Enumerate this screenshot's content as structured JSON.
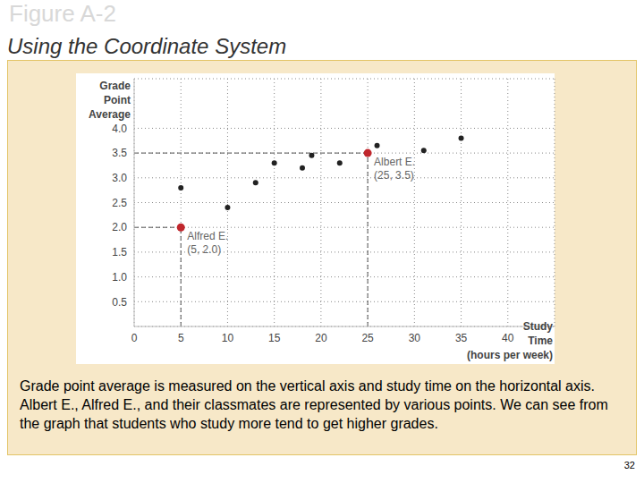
{
  "chart_data": {
    "type": "scatter",
    "title": "Figure A-2",
    "subtitle": "Using the Coordinate System",
    "x_label": "Study Time (hours per week)",
    "y_label": "Grade Point Average",
    "x": [
      5,
      5,
      10,
      13,
      15,
      18,
      19,
      22,
      25,
      26,
      31,
      35
    ],
    "values": [
      2.8,
      2.0,
      2.4,
      2.9,
      3.3,
      3.2,
      3.45,
      3.3,
      3.5,
      3.65,
      3.55,
      3.8
    ],
    "colors": [
      "#222222",
      "#c0272d",
      "#222222",
      "#222222",
      "#222222",
      "#222222",
      "#222222",
      "#222222",
      "#c0272d",
      "#222222",
      "#222222",
      "#222222"
    ],
    "xlim": [
      0,
      45
    ],
    "xticks": [
      0,
      5,
      10,
      15,
      20,
      25,
      30,
      35,
      40
    ],
    "ylim": [
      0,
      5
    ],
    "yticks": [
      0.5,
      {
        "value": 1,
        "label": "1.0"
      },
      1.5,
      {
        "value": 2,
        "label": "2.0"
      },
      2.5,
      {
        "value": 3,
        "label": "3.0"
      },
      3.5,
      {
        "value": 4,
        "label": "4.0"
      }
    ],
    "grid": true,
    "annotations": [
      {
        "text": "Alfred E.",
        "coords": "(5, 2.0)",
        "x": 5,
        "y": 2.0
      },
      {
        "text": "Albert E.",
        "coords": "(25, 3.5)",
        "x": 25,
        "y": 3.5
      }
    ],
    "caption": "Grade point average is measured on the vertical axis and study time on the horizontal axis. Albert E., Alfred E., and their classmates are represented by various points. We can see from the graph that students who study more tend to get higher grades.",
    "page_number": "32"
  }
}
